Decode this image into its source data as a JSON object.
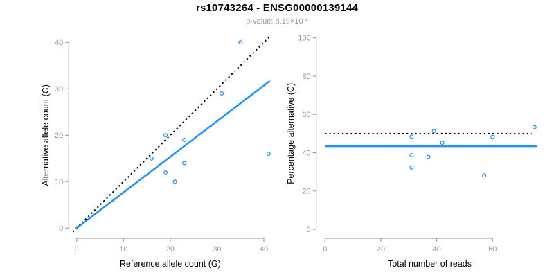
{
  "figure": {
    "title": "rs10743264 - ENSG00000139144",
    "subtitle_prefix": "p-value: 8.19×10",
    "subtitle_exponent": "-3"
  },
  "colors": {
    "point": "#1E90FF",
    "fit_line": "#1E90FF",
    "reference_line": "#000000",
    "axis_line": "#8f8f8f",
    "tick_label": "#979797",
    "axis_title": "#000000",
    "subtitle": "#9b9b9b"
  },
  "chart_data": [
    {
      "id": "allele-count-scatter",
      "type": "scatter",
      "xlabel": "Reference allele count (G)",
      "ylabel": "Alternative allele count (C)",
      "xticks": [
        0,
        10,
        20,
        30,
        40
      ],
      "yticks": [
        0,
        10,
        20,
        30,
        40
      ],
      "xlim": [
        -1.6,
        41.6
      ],
      "ylim": [
        -1.6,
        41.6
      ],
      "grid": false,
      "points": [
        [
          35,
          40
        ],
        [
          31,
          29
        ],
        [
          19,
          20
        ],
        [
          23,
          19
        ],
        [
          16,
          15
        ],
        [
          41,
          16
        ],
        [
          23,
          14
        ],
        [
          19,
          12
        ],
        [
          21,
          10
        ]
      ],
      "lines": [
        {
          "name": "identity-reference-line",
          "style": "dotted",
          "color": "#000000",
          "x1": -0.8,
          "y1": -0.8,
          "x2": 41.3,
          "y2": 41.3
        },
        {
          "name": "fitted-proportion-line",
          "style": "solid",
          "color": "#1E90FF",
          "x1": -0.2,
          "y1": -0.15,
          "x2": 41.3,
          "y2": 31.7
        }
      ]
    },
    {
      "id": "percentage-alternative-scatter",
      "type": "scatter",
      "xlabel": "Total number of reads",
      "ylabel": "Percentage alternative (C)",
      "xticks": [
        0,
        20,
        40,
        60
      ],
      "yticks": [
        0,
        20,
        40,
        60,
        80,
        100
      ],
      "xlim": [
        -3.1,
        78.1
      ],
      "ylim": [
        -4.2,
        104.2
      ],
      "grid": false,
      "points": [
        [
          75,
          53.3
        ],
        [
          60,
          48.3
        ],
        [
          39,
          51.3
        ],
        [
          42,
          45.2
        ],
        [
          31,
          48.4
        ],
        [
          57,
          28.1
        ],
        [
          37,
          37.8
        ],
        [
          31,
          38.7
        ],
        [
          31,
          32.3
        ]
      ],
      "lines": [
        {
          "name": "fifty-percent-reference-line",
          "style": "dotted",
          "color": "#000000",
          "x1": 0,
          "y1": 50,
          "x2": 74,
          "y2": 50
        },
        {
          "name": "mean-percentage-line",
          "style": "solid",
          "color": "#1E90FF",
          "x1": 0,
          "y1": 43.4,
          "x2": 76,
          "y2": 43.4
        }
      ]
    }
  ]
}
